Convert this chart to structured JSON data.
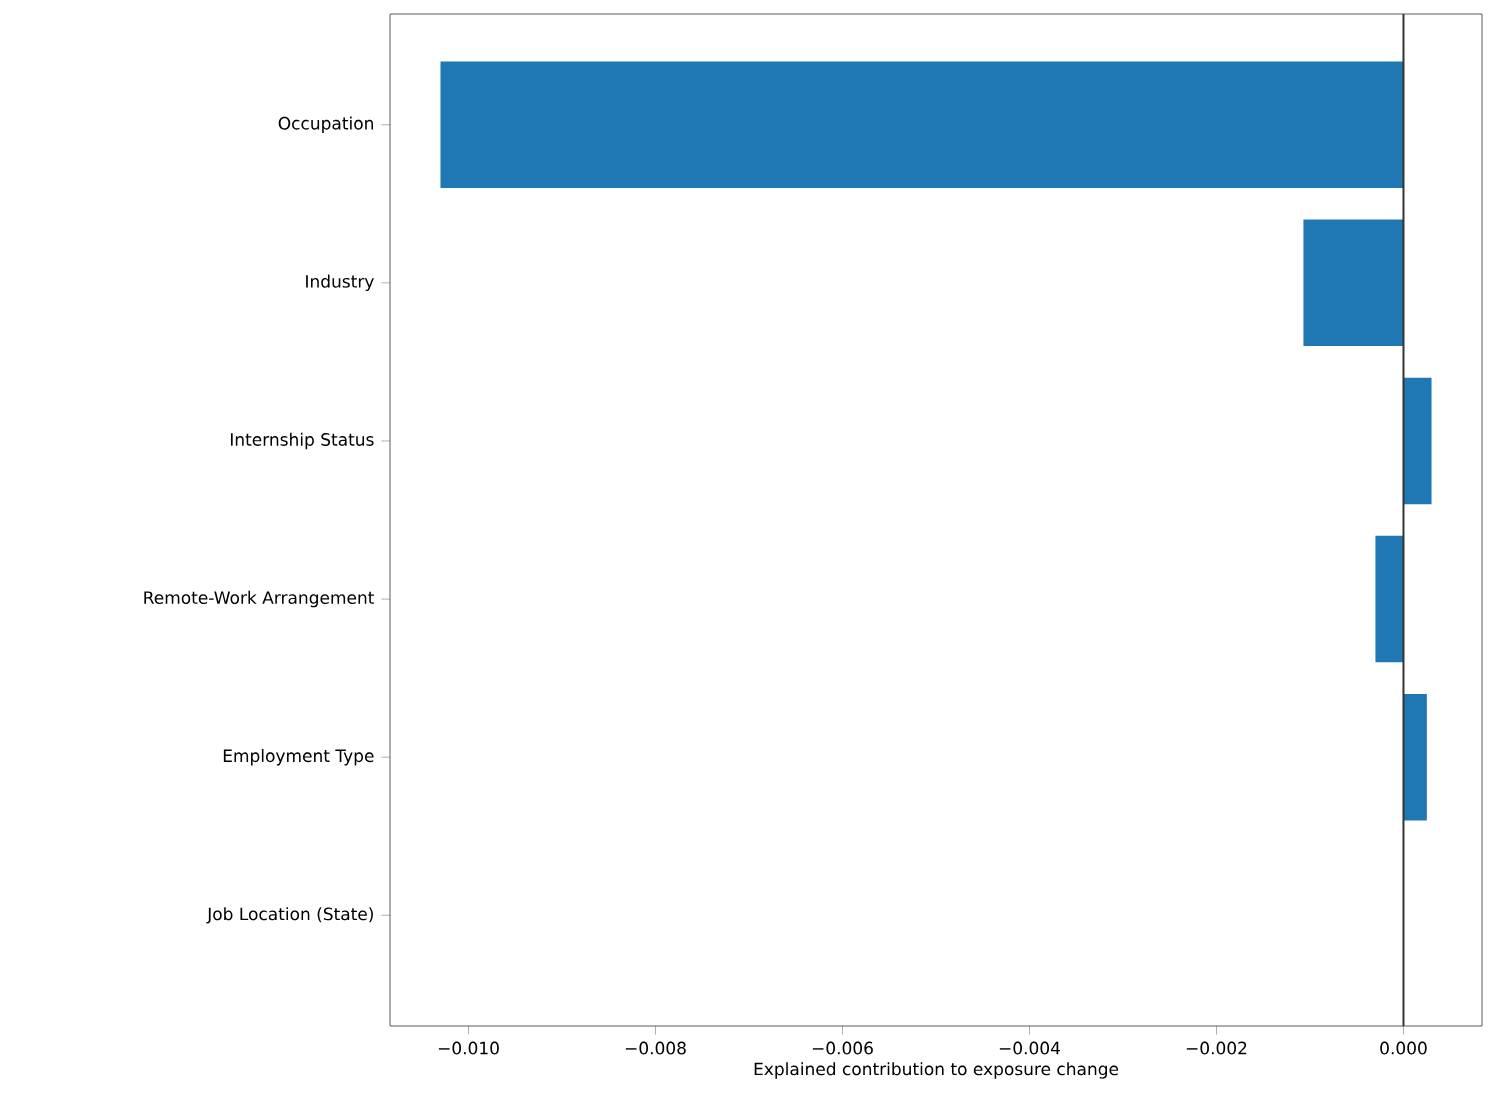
{
  "chart_data": {
    "type": "bar",
    "orientation": "horizontal",
    "xlabel": "Explained contribution to exposure change",
    "categories": [
      "Occupation",
      "Industry",
      "Internship Status",
      "Remote-Work Arrangement",
      "Employment Type",
      "Job Location (State)"
    ],
    "values": [
      -0.0103,
      -0.00107,
      0.0003,
      -0.0003,
      0.00025,
      0
    ],
    "color": "#1f77b4",
    "xlim": [
      -0.01084,
      0.00084
    ],
    "xticks": [
      {
        "value": -0.01,
        "label": "−0.010"
      },
      {
        "value": -0.008,
        "label": "−0.008"
      },
      {
        "value": -0.006,
        "label": "−0.006"
      },
      {
        "value": -0.004,
        "label": "−0.004"
      },
      {
        "value": -0.002,
        "label": "−0.002"
      },
      {
        "value": 0,
        "label": "0.000"
      }
    ],
    "ref_lines": [
      {
        "axis": "x",
        "value": 0,
        "color": "#333333"
      }
    ],
    "grid": false
  }
}
